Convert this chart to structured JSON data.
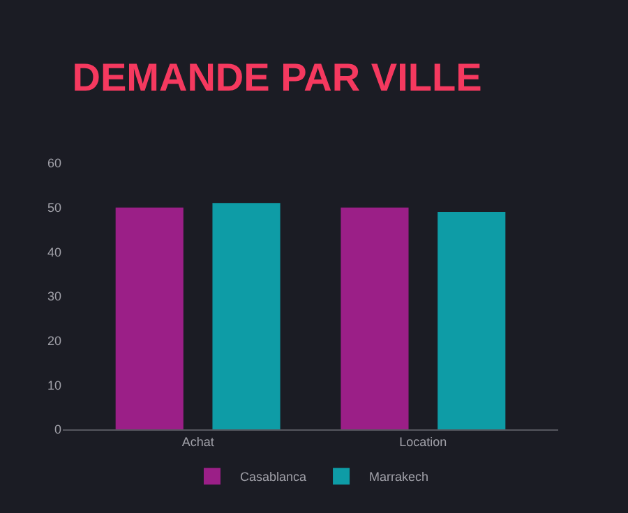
{
  "chart_data": {
    "type": "bar",
    "title": "DEMANDE PAR VILLE",
    "categories": [
      "Achat",
      "Location"
    ],
    "series": [
      {
        "name": "Casablanca",
        "color": "#9b1f87",
        "values": [
          50,
          50
        ]
      },
      {
        "name": "Marrakech",
        "color": "#0e9ca6",
        "values": [
          51,
          49
        ]
      }
    ],
    "ylim": [
      0,
      60
    ],
    "yticks": [
      0,
      10,
      20,
      30,
      40,
      50,
      60
    ],
    "grid": false,
    "legend": "bottom"
  }
}
